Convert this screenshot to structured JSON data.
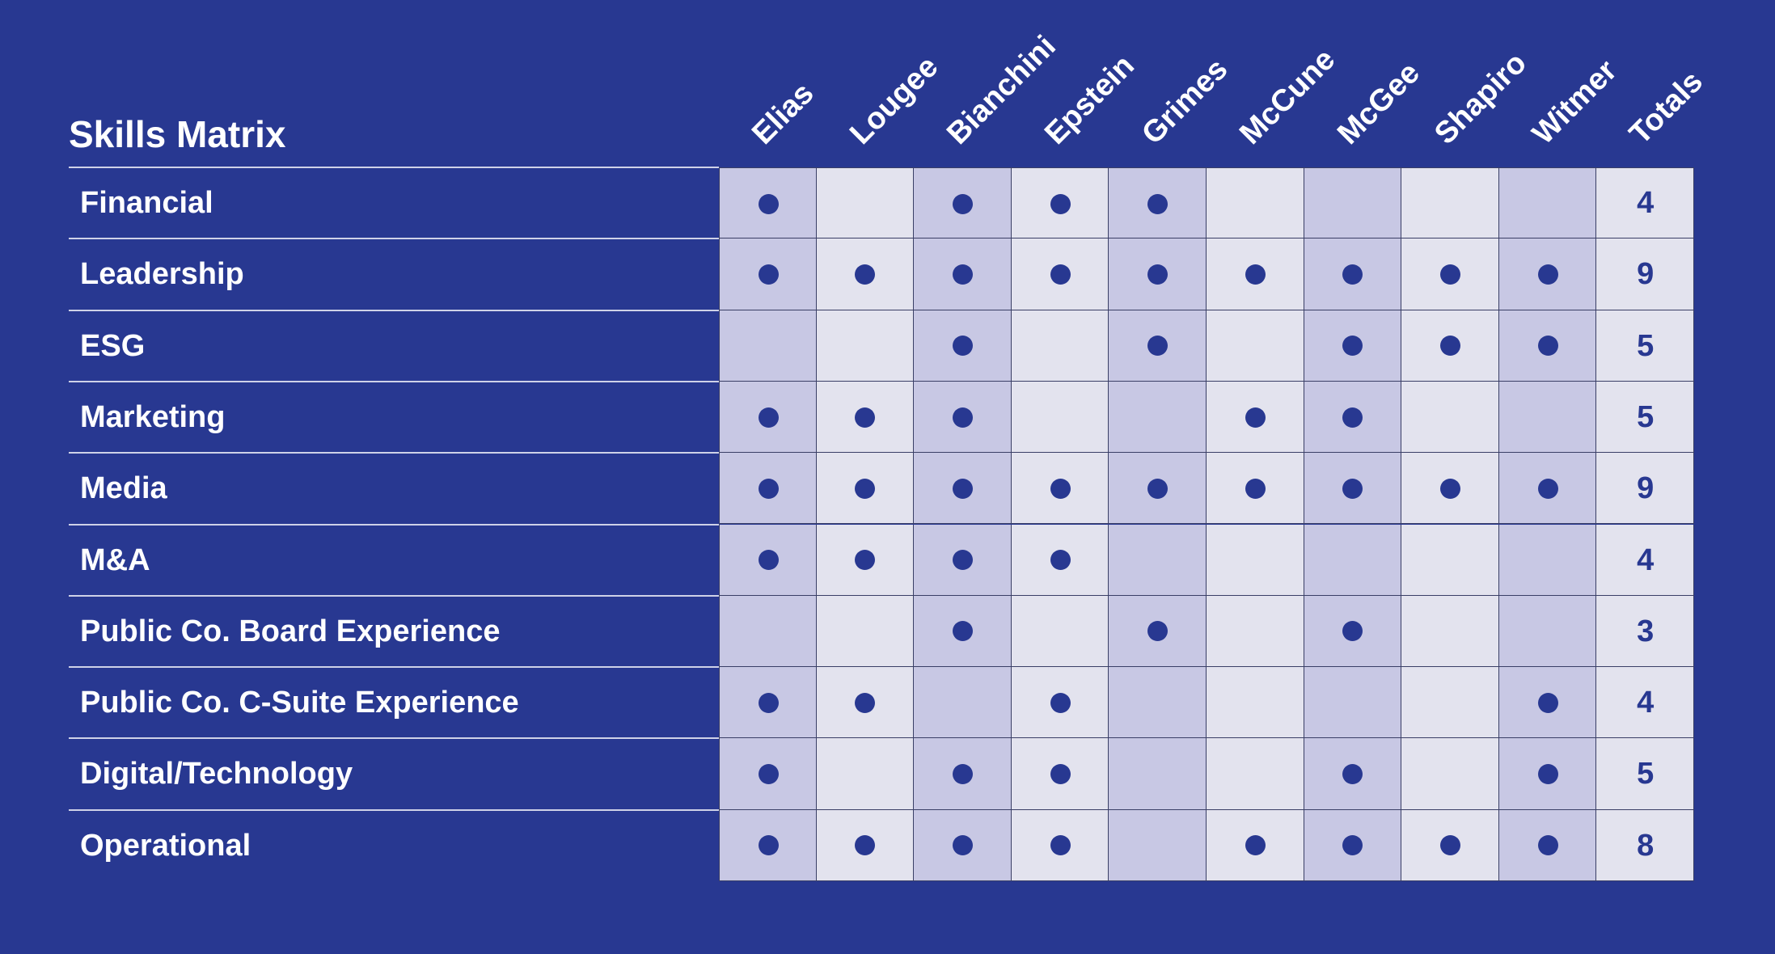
{
  "chart_data": {
    "type": "table",
    "title": "Skills Matrix",
    "columns": [
      "Elias",
      "Lougee",
      "Bianchini",
      "Epstein",
      "Grimes",
      "McCune",
      "McGee",
      "Shapiro",
      "Witmer"
    ],
    "totals_label": "Totals",
    "rows": [
      {
        "skill": "Financial",
        "marks": [
          1,
          0,
          1,
          1,
          1,
          0,
          0,
          0,
          0
        ],
        "total": 4
      },
      {
        "skill": "Leadership",
        "marks": [
          1,
          1,
          1,
          1,
          1,
          1,
          1,
          1,
          1
        ],
        "total": 9
      },
      {
        "skill": "ESG",
        "marks": [
          0,
          0,
          1,
          0,
          1,
          0,
          1,
          1,
          1
        ],
        "total": 5
      },
      {
        "skill": "Marketing",
        "marks": [
          1,
          1,
          1,
          0,
          0,
          1,
          1,
          0,
          0
        ],
        "total": 5
      },
      {
        "skill": "Media",
        "marks": [
          1,
          1,
          1,
          1,
          1,
          1,
          1,
          1,
          1
        ],
        "total": 9
      },
      {
        "skill": "M&A",
        "marks": [
          1,
          1,
          1,
          1,
          0,
          0,
          0,
          0,
          0
        ],
        "total": 4
      },
      {
        "skill": "Public Co. Board Experience",
        "marks": [
          0,
          0,
          1,
          0,
          1,
          0,
          1,
          0,
          0
        ],
        "total": 3
      },
      {
        "skill": "Public Co. C-Suite Experience",
        "marks": [
          1,
          1,
          0,
          1,
          0,
          0,
          0,
          0,
          1
        ],
        "total": 4
      },
      {
        "skill": "Digital/Technology",
        "marks": [
          1,
          0,
          1,
          1,
          0,
          0,
          1,
          0,
          1
        ],
        "total": 5
      },
      {
        "skill": "Operational",
        "marks": [
          1,
          1,
          1,
          1,
          0,
          1,
          1,
          1,
          1
        ],
        "total": 8
      }
    ]
  },
  "colors": {
    "background": "#283891",
    "column_shade_dark": "#c8c8e4",
    "column_shade_light": "#e3e3ee",
    "dot": "#283891",
    "text_light": "#ffffff",
    "total_text": "#283891"
  }
}
